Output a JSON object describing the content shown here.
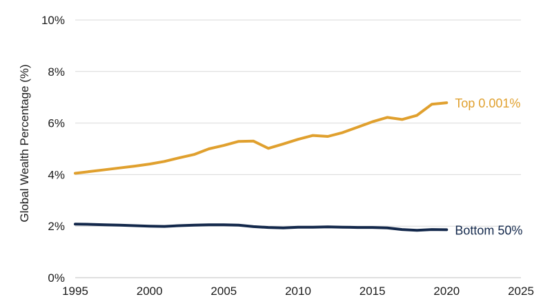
{
  "chart_data": {
    "type": "line",
    "ylabel": "Global Wealth Percentage (%)",
    "xlim": [
      1995,
      2025
    ],
    "ylim": [
      0,
      10
    ],
    "x_ticks": [
      1995,
      2000,
      2005,
      2010,
      2015,
      2020,
      2025
    ],
    "y_ticks": [
      "0%",
      "2%",
      "4%",
      "6%",
      "8%",
      "10%"
    ],
    "y_tick_values": [
      0,
      2,
      4,
      6,
      8,
      10
    ],
    "grid": "horizontal",
    "x": [
      1995,
      1996,
      1997,
      1998,
      1999,
      2000,
      2001,
      2002,
      2003,
      2004,
      2005,
      2006,
      2007,
      2008,
      2009,
      2010,
      2011,
      2012,
      2013,
      2014,
      2015,
      2016,
      2017,
      2018,
      2019,
      2020
    ],
    "series": [
      {
        "name": "Top 0.001%",
        "color": "#E0A02E",
        "values": [
          4.05,
          4.12,
          4.19,
          4.26,
          4.33,
          4.41,
          4.51,
          4.65,
          4.78,
          5.0,
          5.13,
          5.29,
          5.3,
          5.02,
          5.19,
          5.37,
          5.52,
          5.48,
          5.63,
          5.84,
          6.05,
          6.22,
          6.14,
          6.3,
          6.73,
          6.79
        ]
      },
      {
        "name": "Bottom 50%",
        "color": "#13284B",
        "values": [
          2.08,
          2.07,
          2.05,
          2.04,
          2.02,
          2.0,
          1.99,
          2.02,
          2.04,
          2.05,
          2.05,
          2.04,
          1.98,
          1.95,
          1.93,
          1.96,
          1.96,
          1.97,
          1.96,
          1.95,
          1.95,
          1.93,
          1.87,
          1.84,
          1.87,
          1.86
        ]
      }
    ]
  }
}
